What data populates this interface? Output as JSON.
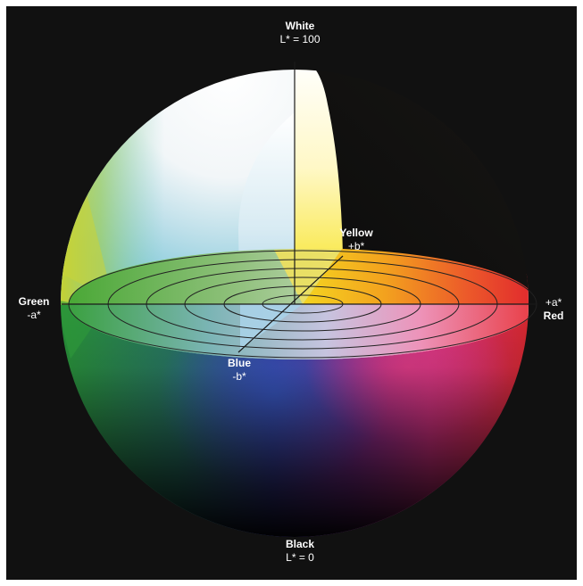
{
  "diagram": {
    "labels": {
      "white": {
        "name": "White",
        "value": "L* = 100"
      },
      "yellow": {
        "name": "Yellow",
        "value": "+b*"
      },
      "green": {
        "name": "Green",
        "value": "-a*"
      },
      "red": {
        "name": "Red",
        "value": "+a*"
      },
      "blue": {
        "name": "Blue",
        "value": "-b*"
      },
      "black": {
        "name": "Black",
        "value": "L* = 0"
      }
    },
    "colors": {
      "background": "#111111",
      "white": "#ffffff",
      "yellow": "#f6e21a",
      "orange": "#f39020",
      "red": "#e22a2e",
      "magenta": "#e0338a",
      "purple": "#6a2f9c",
      "blue": "#2e4fb0",
      "cyan": "#2fa0c8",
      "green": "#2b9a3b",
      "yellow_green": "#b6cf2d",
      "grid_lines": "#222222"
    }
  }
}
